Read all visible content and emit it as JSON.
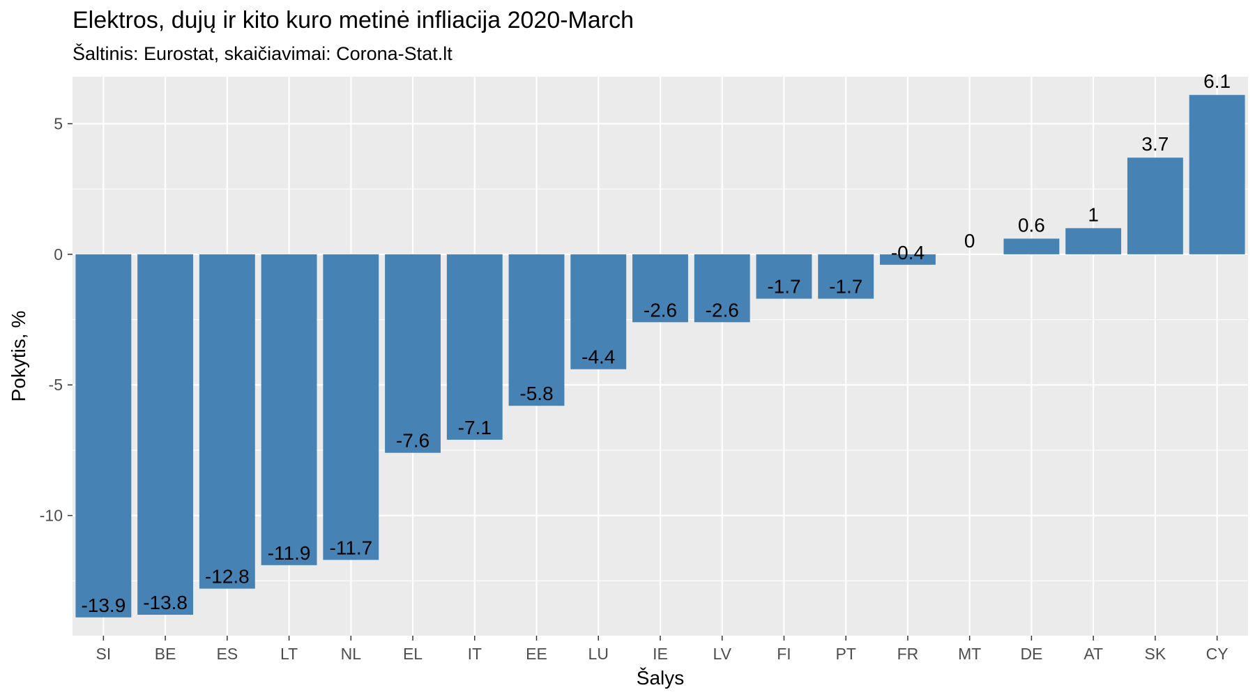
{
  "chart_data": {
    "type": "bar",
    "title": "Elektros, dujų ir kito kuro metinė infliacija 2020-March",
    "subtitle": "Šaltinis: Eurostat, skaičiavimai: Corona-Stat.lt",
    "xlabel": "Šalys",
    "ylabel": "Pokytis, %",
    "categories": [
      "SI",
      "BE",
      "ES",
      "LT",
      "NL",
      "EL",
      "IT",
      "EE",
      "LU",
      "IE",
      "LV",
      "FI",
      "PT",
      "FR",
      "MT",
      "DE",
      "AT",
      "SK",
      "CY"
    ],
    "values": [
      -13.9,
      -13.8,
      -12.8,
      -11.9,
      -11.7,
      -7.6,
      -7.1,
      -5.8,
      -4.4,
      -2.6,
      -2.6,
      -1.7,
      -1.7,
      -0.4,
      0,
      0.6,
      1,
      3.7,
      6.1
    ],
    "labels": [
      "-13.9",
      "-13.8",
      "-12.8",
      "-11.9",
      "-11.7",
      "-7.6",
      "-7.1",
      "-5.8",
      "-4.4",
      "-2.6",
      "-2.6",
      "-1.7",
      "-1.7",
      "-0.4",
      "0",
      "0.6",
      "1",
      "3.7",
      "6.1"
    ],
    "ylim": [
      -14.6,
      6.8
    ],
    "yticks": [
      5,
      0,
      -5,
      -10
    ],
    "ytick_labels": [
      "5",
      "0",
      "-5",
      "-10"
    ],
    "grid": true,
    "bar_color": "#4682b4",
    "panel_color": "#ebebeb",
    "grid_color": "#ffffff"
  }
}
